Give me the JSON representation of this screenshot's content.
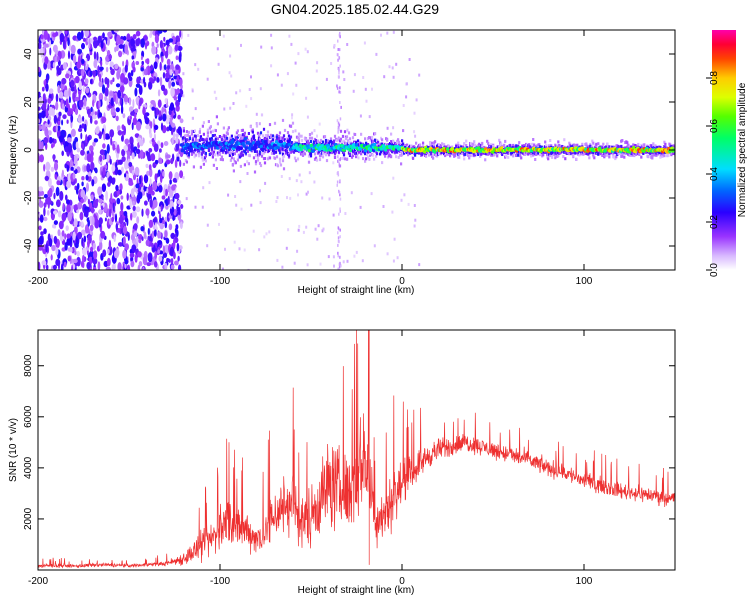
{
  "title": "GN04.2025.185.02.44.G29",
  "chart_data": [
    {
      "type": "heatmap",
      "xlabel": "Height of straight line (km)",
      "ylabel": "Frequency (Hz)",
      "xlim": [
        -200,
        150
      ],
      "ylim": [
        -50,
        50
      ],
      "x_ticks": [
        -200,
        -100,
        0,
        100
      ],
      "y_ticks": [
        -40,
        -20,
        0,
        20,
        40
      ],
      "colorbar": {
        "label": "Normalized spectral amplitude",
        "range": [
          0,
          1
        ],
        "ticks": [
          0.0,
          0.2,
          0.4,
          0.6,
          0.8
        ],
        "tick_labels": [
          "0.0",
          "0.2",
          "0.4",
          "0.6",
          "0.8"
        ],
        "colormap": [
          "#f0e6ff",
          "#9933ff",
          "#0000ff",
          "#00e5ff",
          "#00ff00",
          "#ffff00",
          "#ff8800",
          "#ff0000",
          "#ff00aa"
        ]
      },
      "regions": [
        {
          "x": [
            -200,
            -121
          ],
          "frequency_spread_hz": [
            -50,
            50
          ],
          "amplitude": "0.1-0.25"
        },
        {
          "x": [
            -121,
            -60
          ],
          "center_hz": 2,
          "halfwidth_hz": 9,
          "peak_amplitude": 0.4
        },
        {
          "x": [
            -60,
            0
          ],
          "center_hz": 1,
          "halfwidth_hz": 5,
          "peak_amplitude": 0.6
        },
        {
          "x": [
            0,
            150
          ],
          "center_hz": 0,
          "halfwidth_hz": 3,
          "peak_amplitude": 0.9
        }
      ],
      "grid": false
    },
    {
      "type": "line",
      "xlabel": "Height of straight line (km)",
      "ylabel": "SNR (10 * v/v)",
      "xlim": [
        -200,
        150
      ],
      "ylim": [
        0,
        9400
      ],
      "x_ticks": [
        -200,
        -100,
        0,
        100
      ],
      "y_ticks": [
        2000,
        4000,
        6000,
        8000
      ],
      "color": "#ee3030",
      "grid": false,
      "series": [
        {
          "x": [
            -200,
            -190,
            -180,
            -170,
            -160,
            -150,
            -140,
            -130,
            -125,
            -120,
            -115,
            -110,
            -105,
            -100,
            -95,
            -90,
            -85,
            -80,
            -75,
            -70,
            -65,
            -60,
            -55,
            -50,
            -45,
            -40,
            -35,
            -30,
            -25,
            -22,
            -20,
            -18,
            -15,
            -10,
            -5,
            0,
            5,
            10,
            15,
            20,
            25,
            30,
            35,
            40,
            45,
            50,
            60,
            70,
            80,
            90,
            100,
            110,
            120,
            130,
            140,
            150
          ],
          "y": [
            150,
            180,
            150,
            190,
            200,
            170,
            210,
            250,
            350,
            450,
            700,
            900,
            1200,
            1600,
            2000,
            1500,
            1600,
            1200,
            1500,
            2200,
            2500,
            2700,
            1800,
            2200,
            2800,
            3400,
            3200,
            3000,
            3500,
            4200,
            4700,
            3500,
            2000,
            2200,
            2800,
            3400,
            3800,
            4200,
            4500,
            4700,
            4800,
            4900,
            5000,
            4900,
            4800,
            4700,
            4500,
            4300,
            4000,
            3800,
            3500,
            3300,
            3100,
            3000,
            2900,
            2800
          ],
          "noise_amplitude": [
            100,
            110,
            100,
            120,
            110,
            100,
            110,
            130,
            250,
            400,
            600,
            900,
            1000,
            1300,
            1500,
            1200,
            1100,
            900,
            1200,
            1600,
            1800,
            1900,
            1500,
            1800,
            2200,
            2600,
            2400,
            2200,
            2500,
            3000,
            3500,
            2600,
            1500,
            1600,
            1700,
            1200,
            900,
            800,
            700,
            650,
            600,
            550,
            550,
            500,
            500,
            500,
            500,
            500,
            500,
            500,
            500,
            450,
            450,
            450,
            450,
            450
          ]
        }
      ],
      "annotations": [
        {
          "x": -18,
          "y": 9400,
          "text": ""
        }
      ]
    }
  ]
}
